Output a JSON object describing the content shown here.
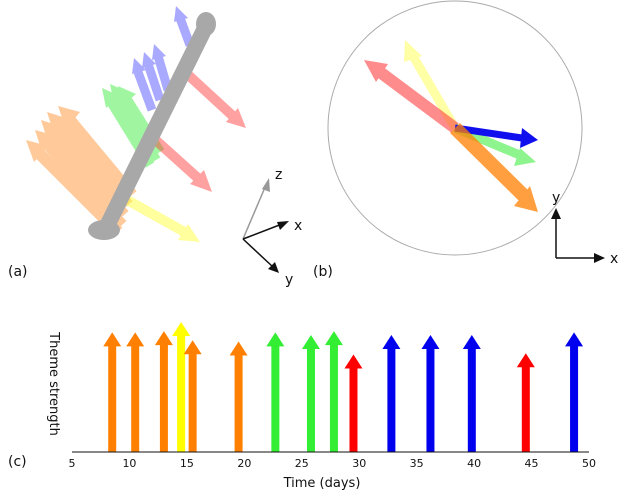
{
  "panel_labels": {
    "a": "(a)",
    "b": "(b)",
    "c": "(c)"
  },
  "axes_a": {
    "z": "z",
    "x": "x",
    "y": "y"
  },
  "axes_b": {
    "y": "y",
    "x": "x"
  },
  "colors": {
    "orange": "#ff8000",
    "yellow": "#ffff00",
    "green": "#33ee33",
    "red": "#ff0000",
    "blue": "#0000ee",
    "gray_rod": "#a0a0a0"
  },
  "chart_data": {
    "type": "bar",
    "title": "",
    "xlabel": "Time (days)",
    "ylabel": "Theme strength",
    "xlim": [
      5,
      50
    ],
    "xticks": [
      5,
      10,
      15,
      20,
      25,
      30,
      35,
      40,
      45,
      50
    ],
    "ylim": [
      0,
      1
    ],
    "grid": false,
    "series": [
      {
        "x": 8.5,
        "value": 0.92,
        "color": "orange"
      },
      {
        "x": 10.5,
        "value": 0.92,
        "color": "orange"
      },
      {
        "x": 13.0,
        "value": 0.93,
        "color": "orange"
      },
      {
        "x": 14.5,
        "value": 1.0,
        "color": "yellow"
      },
      {
        "x": 15.5,
        "value": 0.86,
        "color": "orange"
      },
      {
        "x": 19.5,
        "value": 0.85,
        "color": "orange"
      },
      {
        "x": 22.7,
        "value": 0.92,
        "color": "green"
      },
      {
        "x": 25.8,
        "value": 0.9,
        "color": "green"
      },
      {
        "x": 27.8,
        "value": 0.93,
        "color": "green"
      },
      {
        "x": 29.5,
        "value": 0.75,
        "color": "red"
      },
      {
        "x": 32.8,
        "value": 0.9,
        "color": "blue"
      },
      {
        "x": 36.2,
        "value": 0.9,
        "color": "blue"
      },
      {
        "x": 39.8,
        "value": 0.9,
        "color": "blue"
      },
      {
        "x": 44.5,
        "value": 0.76,
        "color": "red"
      },
      {
        "x": 48.7,
        "value": 0.92,
        "color": "blue"
      }
    ]
  }
}
